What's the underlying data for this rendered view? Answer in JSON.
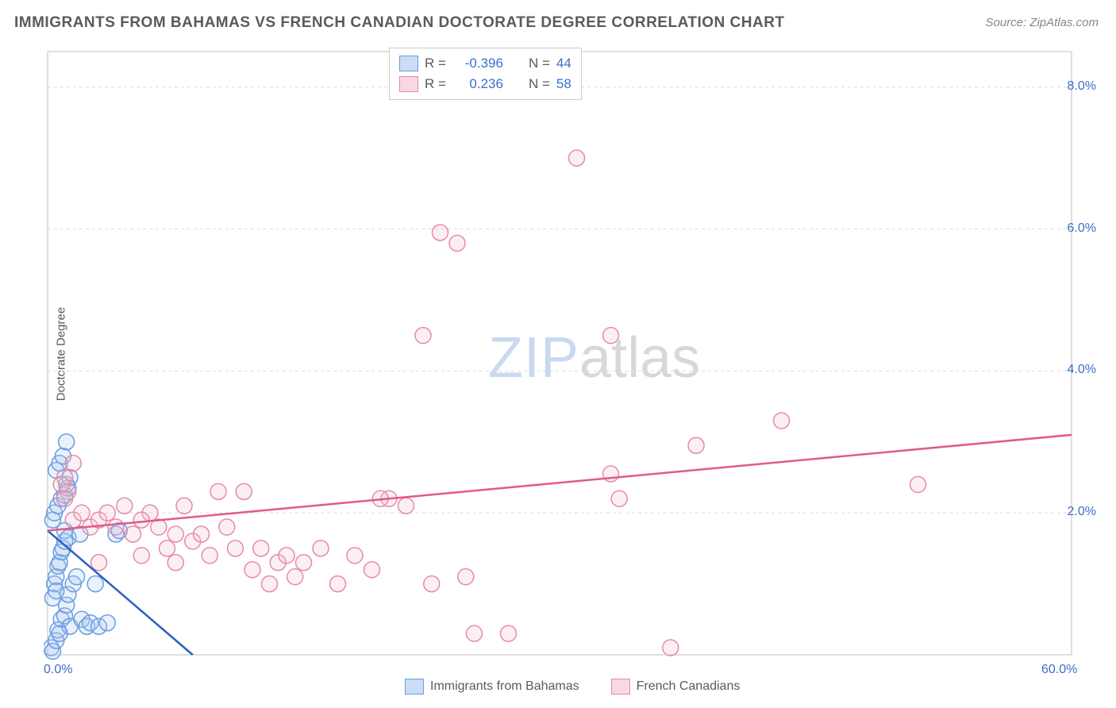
{
  "title": "IMMIGRANTS FROM BAHAMAS VS FRENCH CANADIAN DOCTORATE DEGREE CORRELATION CHART",
  "source_label": "Source: ZipAtlas.com",
  "ylabel": "Doctorate Degree",
  "watermark": {
    "part1": "ZIP",
    "part2": "atlas"
  },
  "chart": {
    "type": "scatter",
    "xlim": [
      0,
      60
    ],
    "ylim": [
      0,
      8.5
    ],
    "x_ticks": [
      {
        "v": 0,
        "label": "0.0%"
      },
      {
        "v": 60,
        "label": "60.0%"
      }
    ],
    "y_ticks": [
      {
        "v": 2,
        "label": "2.0%"
      },
      {
        "v": 4,
        "label": "4.0%"
      },
      {
        "v": 6,
        "label": "6.0%"
      },
      {
        "v": 8,
        "label": "8.0%"
      }
    ],
    "grid_color": "#dcdcdc",
    "grid_dash": "4,4",
    "axis_color": "#bfbfbf",
    "background": "#ffffff",
    "marker_radius": 10,
    "marker_stroke_width": 1.5,
    "marker_fill_opacity": 0.25,
    "trend_line_width": 2.5,
    "series": [
      {
        "id": "bahamas",
        "label": "Immigrants from Bahamas",
        "color_stroke": "#6a9de0",
        "color_fill": "#a9c7ef",
        "trend_color": "#2b5fc1",
        "R": "-0.396",
        "N": "44",
        "trend": {
          "x1": 0,
          "y1": 1.75,
          "x2": 8.5,
          "y2": 0
        },
        "points": [
          [
            0.2,
            0.1
          ],
          [
            0.3,
            0.05
          ],
          [
            0.5,
            0.2
          ],
          [
            0.6,
            0.35
          ],
          [
            0.8,
            0.5
          ],
          [
            1.0,
            0.55
          ],
          [
            1.1,
            0.7
          ],
          [
            1.2,
            0.85
          ],
          [
            1.3,
            0.4
          ],
          [
            0.4,
            1.0
          ],
          [
            0.5,
            1.1
          ],
          [
            0.6,
            1.25
          ],
          [
            0.7,
            1.3
          ],
          [
            0.8,
            1.45
          ],
          [
            0.9,
            1.5
          ],
          [
            1.0,
            1.6
          ],
          [
            1.0,
            1.75
          ],
          [
            1.2,
            1.65
          ],
          [
            0.3,
            1.9
          ],
          [
            0.4,
            2.0
          ],
          [
            0.6,
            2.1
          ],
          [
            0.8,
            2.2
          ],
          [
            1.0,
            2.25
          ],
          [
            1.1,
            2.4
          ],
          [
            1.2,
            2.35
          ],
          [
            1.3,
            2.5
          ],
          [
            0.5,
            2.6
          ],
          [
            0.7,
            2.7
          ],
          [
            0.9,
            2.8
          ],
          [
            1.1,
            3.0
          ],
          [
            0.3,
            0.8
          ],
          [
            0.5,
            0.9
          ],
          [
            0.7,
            0.3
          ],
          [
            1.5,
            1.0
          ],
          [
            1.7,
            1.1
          ],
          [
            1.9,
            1.7
          ],
          [
            2.0,
            0.5
          ],
          [
            2.3,
            0.4
          ],
          [
            2.5,
            0.45
          ],
          [
            3.0,
            0.4
          ],
          [
            3.5,
            0.45
          ],
          [
            4.0,
            1.7
          ],
          [
            4.2,
            1.75
          ],
          [
            2.8,
            1.0
          ]
        ]
      },
      {
        "id": "french",
        "label": "French Canadians",
        "color_stroke": "#e68aa8",
        "color_fill": "#f4c0d1",
        "trend_color": "#e05a8a",
        "R": "0.236",
        "N": "58",
        "trend": {
          "x1": 0,
          "y1": 1.75,
          "x2": 60,
          "y2": 3.1
        },
        "points": [
          [
            1.0,
            2.5
          ],
          [
            1.2,
            2.3
          ],
          [
            1.5,
            1.9
          ],
          [
            2.0,
            2.0
          ],
          [
            2.5,
            1.8
          ],
          [
            3.0,
            1.9
          ],
          [
            3.5,
            2.0
          ],
          [
            4.0,
            1.8
          ],
          [
            4.5,
            2.1
          ],
          [
            5.0,
            1.7
          ],
          [
            5.5,
            1.4
          ],
          [
            6.0,
            2.0
          ],
          [
            6.5,
            1.8
          ],
          [
            7.0,
            1.5
          ],
          [
            7.5,
            1.3
          ],
          [
            8.0,
            2.1
          ],
          [
            8.5,
            1.6
          ],
          [
            9.0,
            1.7
          ],
          [
            9.5,
            1.4
          ],
          [
            10.0,
            2.3
          ],
          [
            11.0,
            1.5
          ],
          [
            12.0,
            1.2
          ],
          [
            12.5,
            1.5
          ],
          [
            13.0,
            1.0
          ],
          [
            13.5,
            1.3
          ],
          [
            14.0,
            1.4
          ],
          [
            14.5,
            1.1
          ],
          [
            15.0,
            1.3
          ],
          [
            16.0,
            1.5
          ],
          [
            17.0,
            1.0
          ],
          [
            18.0,
            1.4
          ],
          [
            19.0,
            1.2
          ],
          [
            20.0,
            2.2
          ],
          [
            21.0,
            2.1
          ],
          [
            22.0,
            4.5
          ],
          [
            23.0,
            5.95
          ],
          [
            24.0,
            5.8
          ],
          [
            24.5,
            1.1
          ],
          [
            25.0,
            0.3
          ],
          [
            27.0,
            0.3
          ],
          [
            22.5,
            1.0
          ],
          [
            31.0,
            7.0
          ],
          [
            33.0,
            2.55
          ],
          [
            33.5,
            2.2
          ],
          [
            33.0,
            4.5
          ],
          [
            36.5,
            0.1
          ],
          [
            38.0,
            2.95
          ],
          [
            43.0,
            3.3
          ],
          [
            51.0,
            2.4
          ],
          [
            1.5,
            2.7
          ],
          [
            0.8,
            2.4
          ],
          [
            1.0,
            2.2
          ],
          [
            3.0,
            1.3
          ],
          [
            5.5,
            1.9
          ],
          [
            7.5,
            1.7
          ],
          [
            10.5,
            1.8
          ],
          [
            11.5,
            2.3
          ],
          [
            19.5,
            2.2
          ]
        ]
      }
    ]
  },
  "legend_top": {
    "rows": [
      {
        "series": 0,
        "R_label": "R = ",
        "N_label": "N = "
      },
      {
        "series": 1,
        "R_label": "R = ",
        "N_label": "N = "
      }
    ]
  }
}
